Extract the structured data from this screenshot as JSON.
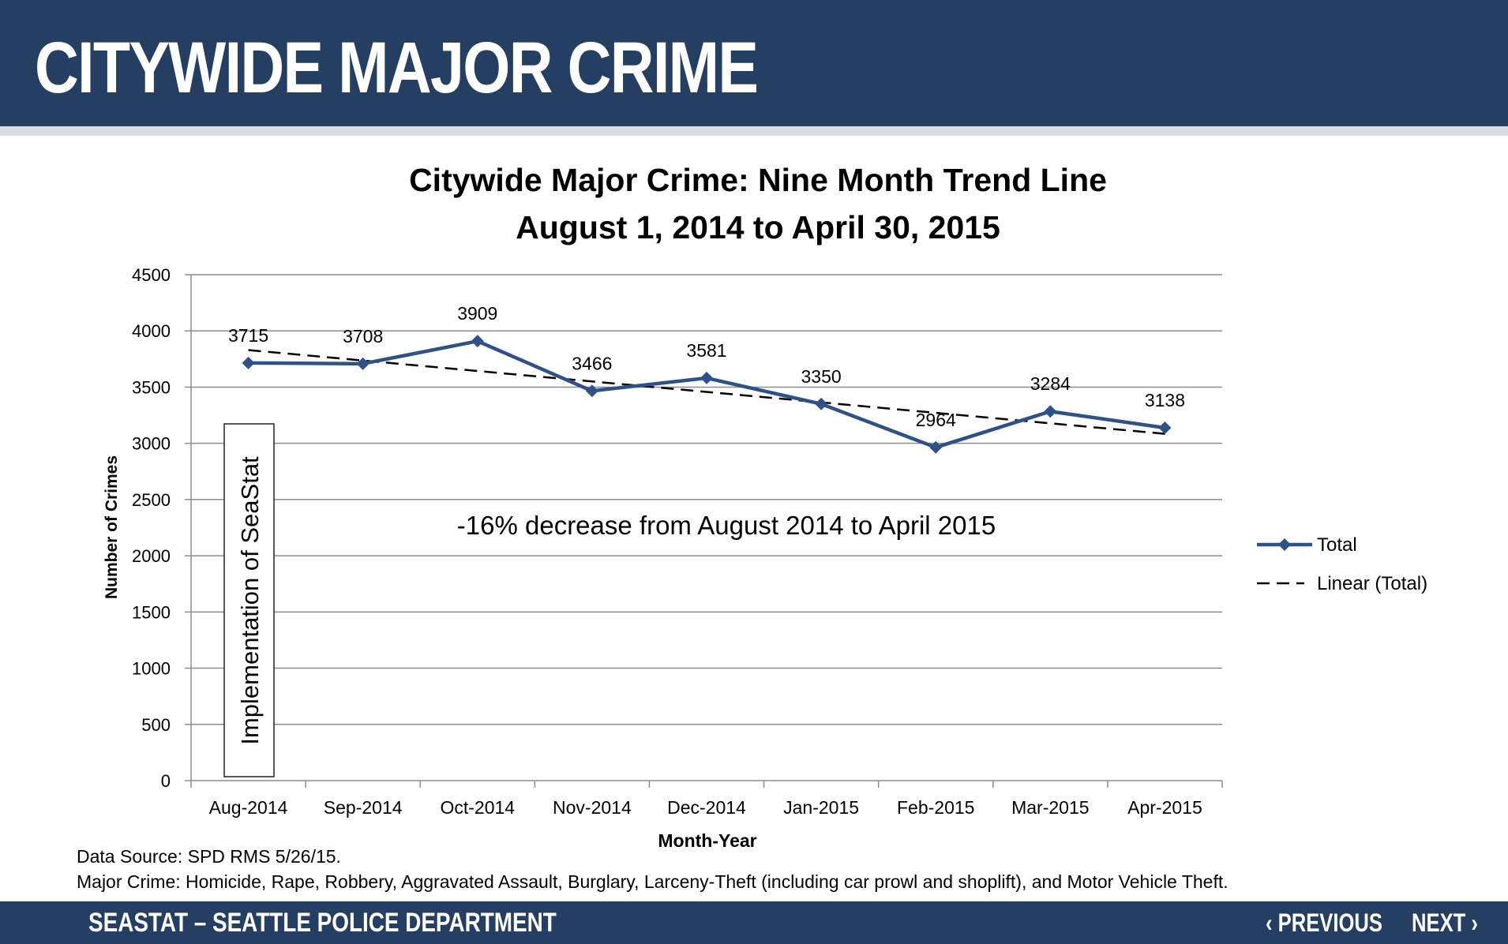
{
  "header": {
    "title": "CITYWIDE MAJOR CRIME"
  },
  "chart_data": {
    "type": "line",
    "title": "Citywide Major Crime: Nine Month Trend Line",
    "subtitle": "August 1, 2014 to April 30, 2015",
    "xlabel": "Month-Year",
    "ylabel": "Number of Crimes",
    "categories": [
      "Aug-2014",
      "Sep-2014",
      "Oct-2014",
      "Nov-2014",
      "Dec-2014",
      "Jan-2015",
      "Feb-2015",
      "Mar-2015",
      "Apr-2015"
    ],
    "series": [
      {
        "name": "Total",
        "values": [
          3715,
          3708,
          3909,
          3466,
          3581,
          3350,
          2964,
          3284,
          3138
        ],
        "color": "#2e5288",
        "marker": "diamond"
      },
      {
        "name": "Linear (Total)",
        "style": "dashed",
        "color": "#000000",
        "trend_of": "Total"
      }
    ],
    "ylim": [
      0,
      4500
    ],
    "yticks": [
      0,
      500,
      1000,
      1500,
      2000,
      2500,
      3000,
      3500,
      4000,
      4500
    ],
    "grid": true,
    "legend": "right",
    "annotations": {
      "vertical_box": "Implementation of SeaStat",
      "note": "-16% decrease from August 2014 to April 2015"
    }
  },
  "footnotes": {
    "source": "Data Source: SPD RMS 5/26/15.",
    "definition": "Major Crime: Homicide, Rape, Robbery, Aggravated Assault, Burglary, Larceny-Theft (including car prowl and shoplift), and Motor Vehicle Theft."
  },
  "footer": {
    "title": "SEASTAT – SEATTLE POLICE DEPARTMENT",
    "previous_label": "‹ PREVIOUS",
    "next_label": "NEXT ›"
  }
}
